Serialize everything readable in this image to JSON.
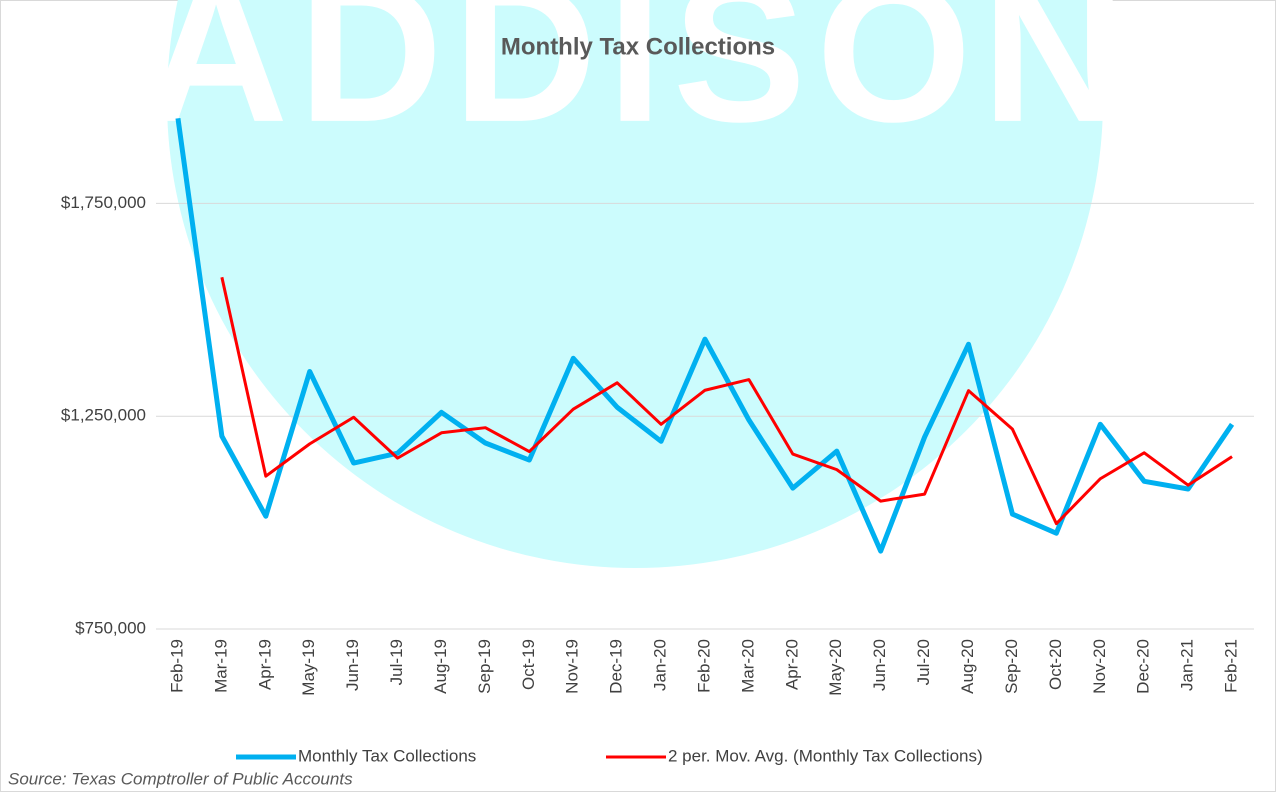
{
  "watermark": "ADDISON",
  "chart_data": {
    "type": "line",
    "title": "Monthly Tax Collections",
    "categories": [
      "Feb-19",
      "Mar-19",
      "Apr-19",
      "May-19",
      "Jun-19",
      "Jul-19",
      "Aug-19",
      "Sep-19",
      "Oct-19",
      "Nov-19",
      "Dec-19",
      "Jan-20",
      "Feb-20",
      "Mar-20",
      "Apr-20",
      "May-20",
      "Jun-20",
      "Jul-20",
      "Aug-20",
      "Sep-20",
      "Oct-20",
      "Nov-20",
      "Dec-20",
      "Jan-21",
      "Feb-21"
    ],
    "series": [
      {
        "name": "Monthly Tax Collections",
        "color": "#00b0f0",
        "width": 5,
        "values": [
          1950000,
          1203000,
          1015000,
          1355000,
          1140000,
          1163000,
          1259000,
          1187000,
          1147000,
          1386000,
          1271000,
          1191000,
          1431000,
          1241000,
          1081000,
          1168000,
          933000,
          1201000,
          1419000,
          1020000,
          975000,
          1231000,
          1097000,
          1079000,
          1231000
        ]
      },
      {
        "name": "2 per. Mov. Avg. (Monthly Tax Collections)",
        "color": "#ff0000",
        "width": 3,
        "values": [
          null,
          1576500,
          1109000,
          1185000,
          1247500,
          1151500,
          1211000,
          1223000,
          1167000,
          1266500,
          1328500,
          1231000,
          1311000,
          1336000,
          1161000,
          1124500,
          1050500,
          1067000,
          1310000,
          1219500,
          997500,
          1103000,
          1164000,
          1088000,
          1155000
        ]
      }
    ],
    "ylim": [
      750000,
      2000000
    ],
    "yticks": [
      {
        "value": 750000,
        "label": "$750,000"
      },
      {
        "value": 1250000,
        "label": "$1,250,000"
      },
      {
        "value": 1750000,
        "label": "$1,750,000"
      }
    ],
    "grid": true,
    "legend": "bottom",
    "source": "Source: Texas Comptroller of Public Accounts"
  }
}
